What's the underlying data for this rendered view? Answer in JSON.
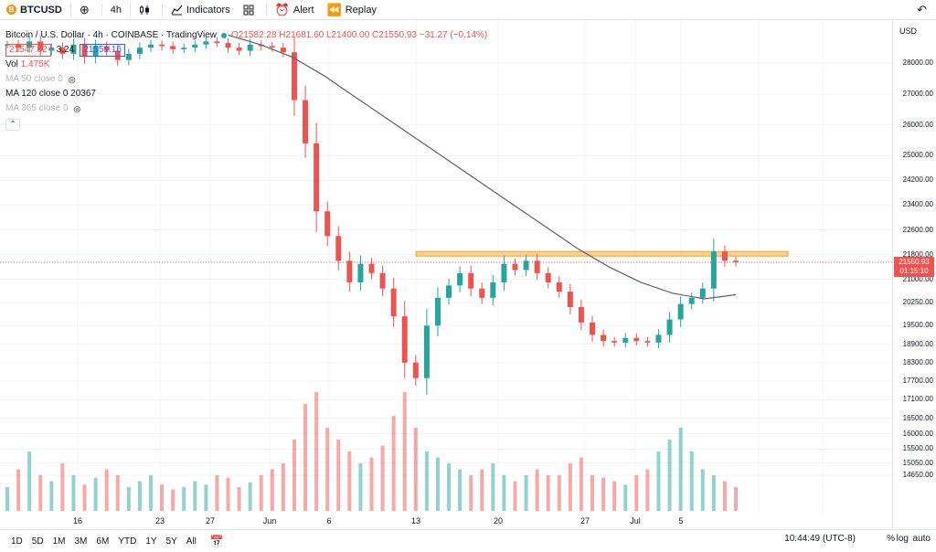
{
  "toolbar": {
    "symbol": "BTCUSD",
    "symbol_badge": "B",
    "interval": "4h",
    "indicators_label": "Indicators",
    "alert_label": "Alert",
    "replay_label": "Replay"
  },
  "legend": {
    "title": "Bitcoin / U.S. Dollar · 4h · COINBASE · TradingView",
    "ohlc": "O21582.28 H21681.60 L21400.00 C21550.93 −31.27 (−0.14%)",
    "bid": "21547.92",
    "spread": "3.24",
    "ask": "21551.16",
    "vol_label": "Vol",
    "vol_value": "1.475K",
    "ma50": "MA 50 close 0",
    "ma120": "MA 120 close 0",
    "ma120_value": "20367",
    "ma365": "MA 365 close 0"
  },
  "price_scale": {
    "currency": "USD",
    "ticks": [
      "28000.00",
      "27000.00",
      "26000.00",
      "25000.00",
      "24200.00",
      "23400.00",
      "22600.00",
      "21800.00",
      "21000.00",
      "20250.00",
      "19500.00",
      "18900.00",
      "18300.00",
      "17700.00",
      "17100.00",
      "16500.00",
      "16000.00",
      "15500.00",
      "15050.00",
      "14650.00"
    ],
    "current_price": "21550.93",
    "countdown": "01:15:10"
  },
  "time_axis": {
    "labels": [
      "16",
      "23",
      "27",
      "Jun",
      "6",
      "13",
      "20",
      "27",
      "Jul",
      "5"
    ]
  },
  "bottom": {
    "ranges": [
      "1D",
      "5D",
      "1M",
      "3M",
      "6M",
      "YTD",
      "1Y",
      "5Y",
      "All"
    ],
    "clock": "10:44:49 (UTC-8)",
    "pct": "%",
    "log": "log",
    "auto": "auto"
  },
  "colors": {
    "up": "#26a69a",
    "down": "#ef5350",
    "zone": "#f5c57a",
    "ma": "#5d606b"
  },
  "chart_data": {
    "type": "candlestick",
    "symbol": "BTCUSD",
    "ylim": [
      14300,
      28800
    ],
    "resistance_zone": [
      21750,
      21900
    ],
    "close_path": [
      28600,
      28500,
      28700,
      28400,
      28500,
      28300,
      28600,
      28200,
      28550,
      28400,
      28100,
      28300,
      28500,
      28600,
      28550,
      28450,
      28500,
      28600,
      28700,
      28650,
      28500,
      28400,
      28600,
      28550,
      28500,
      28350,
      26800,
      25400,
      23200,
      22400,
      21600,
      20900,
      21500,
      21200,
      20700,
      19800,
      18300,
      17800,
      19500,
      20400,
      20800,
      21200,
      20700,
      20400,
      20900,
      21500,
      21300,
      21600,
      21200,
      20900,
      20600,
      20100,
      19600,
      19200,
      19000,
      18950,
      19100,
      19000,
      18950,
      19200,
      19700,
      20200,
      20400,
      20700,
      21900,
      21600,
      21550.93
    ],
    "ma120_path": [
      28900,
      28600,
      28200,
      27600,
      26900,
      26200,
      25500,
      24800,
      24100,
      23400,
      22700,
      22000,
      21400,
      20900,
      20550,
      20367,
      20500
    ],
    "volume_heights": [
      0.2,
      0.35,
      0.5,
      0.3,
      0.25,
      0.4,
      0.3,
      0.22,
      0.28,
      0.35,
      0.3,
      0.2,
      0.25,
      0.3,
      0.22,
      0.18,
      0.2,
      0.25,
      0.22,
      0.3,
      0.28,
      0.2,
      0.24,
      0.3,
      0.35,
      0.4,
      0.6,
      0.9,
      1.0,
      0.7,
      0.6,
      0.5,
      0.4,
      0.45,
      0.55,
      0.8,
      1.0,
      0.7,
      0.5,
      0.45,
      0.4,
      0.35,
      0.3,
      0.35,
      0.4,
      0.3,
      0.25,
      0.3,
      0.35,
      0.3,
      0.3,
      0.4,
      0.45,
      0.3,
      0.28,
      0.25,
      0.22,
      0.3,
      0.35,
      0.5,
      0.6,
      0.7,
      0.5,
      0.35,
      0.3,
      0.25,
      0.2
    ]
  }
}
